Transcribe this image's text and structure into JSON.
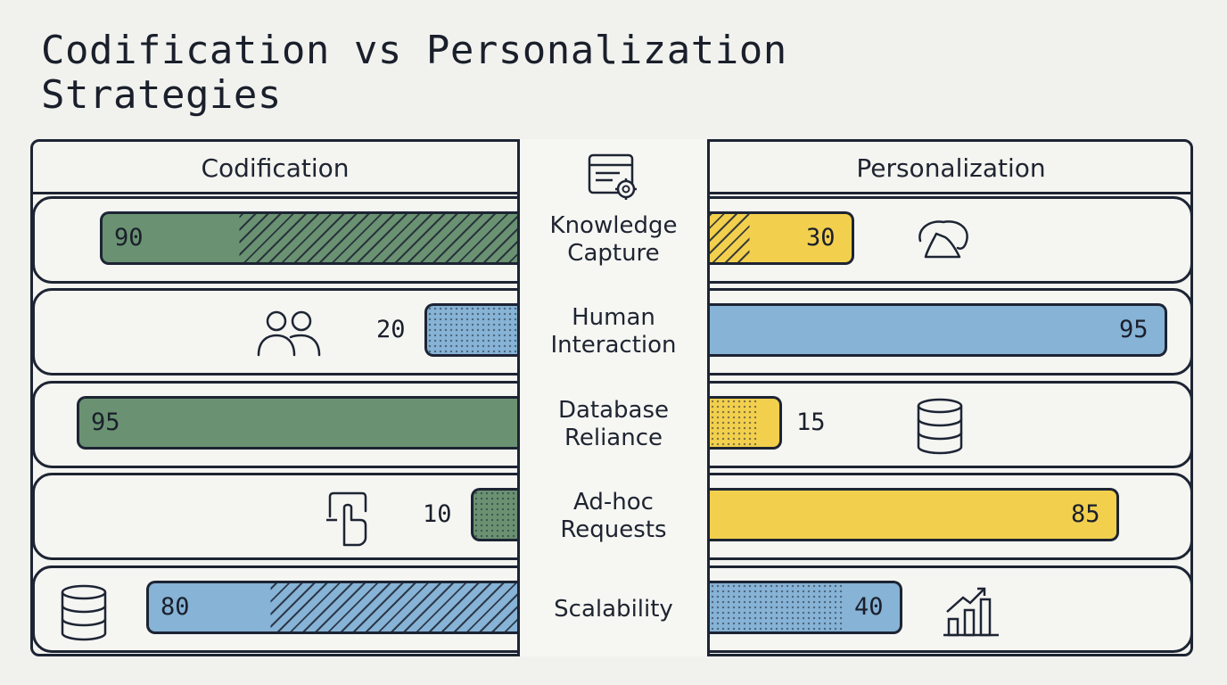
{
  "chart_data": {
    "type": "bar",
    "title": "Codification vs Personalization Strategies",
    "categories": [
      "Knowledge Capture",
      "Human Interaction",
      "Database Reliance",
      "Ad-hoc Requests",
      "Scalability"
    ],
    "xlim": [
      0,
      100
    ],
    "series": [
      {
        "name": "Codification",
        "values": [
          90,
          20,
          95,
          10,
          80
        ]
      },
      {
        "name": "Personalization",
        "values": [
          30,
          95,
          15,
          85,
          40
        ]
      }
    ]
  },
  "title_lines": [
    "Codification vs Personalization",
    "Strategies"
  ],
  "headers": {
    "left": "Codification",
    "right": "Personalization"
  },
  "rows": [
    {
      "label": "Knowledge\nCapture",
      "left_color": "#6a9272",
      "right_color": "#f2d04e",
      "left_pattern": "hatch",
      "right_pattern": "hatch",
      "right_icon": "brain-icon",
      "left_icon": ""
    },
    {
      "label": "Human\nInteraction",
      "left_color": "#86b3d6",
      "right_color": "#86b3d6",
      "left_pattern": "dots",
      "right_pattern": "none",
      "left_icon": "people-icon",
      "right_icon": ""
    },
    {
      "label": "Database\nReliance",
      "left_color": "#6a9272",
      "right_color": "#f2d04e",
      "left_pattern": "none",
      "right_pattern": "dots",
      "left_icon": "",
      "right_icon": "database-icon"
    },
    {
      "label": "Ad-hoc\nRequests",
      "left_color": "#6a9272",
      "right_color": "#f2d04e",
      "left_pattern": "dots",
      "right_pattern": "none",
      "left_icon": "hand-pointer-icon",
      "right_icon": ""
    },
    {
      "label": "Scalability",
      "left_color": "#86b3d6",
      "right_color": "#86b3d6",
      "left_pattern": "hatch",
      "right_pattern": "dots",
      "left_icon": "database-icon",
      "right_icon": "growth-chart-icon"
    }
  ],
  "center_icon": "document-gear-icon",
  "colors": {
    "outline": "#1d2433",
    "background": "#f1f2ee",
    "green": "#6a9272",
    "yellow": "#f2d04e",
    "blue": "#86b3d6"
  }
}
